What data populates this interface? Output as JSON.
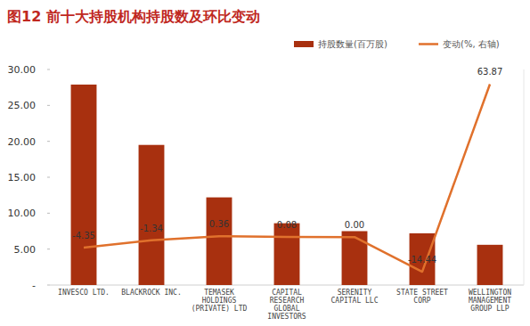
{
  "chart_data": {
    "type": "bar",
    "title": "图12 前十大持股机构持股数及环比变动",
    "categories": [
      "INVESCO LTD.",
      "BLACKROCK INC.",
      "TEMASEK HOLDINGS (PRIVATE) LTD",
      "CAPITAL RESEARCH GLOBAL INVESTORS",
      "SERENITY CAPITAL LLC",
      "STATE STREET CORP",
      "WELLINGTON MANAGEMENT GROUP LLP"
    ],
    "series": [
      {
        "name": "持股数量(百万股)",
        "type": "bar",
        "color": "#a8300f",
        "values": [
          27.9,
          19.5,
          12.2,
          8.6,
          7.5,
          7.2,
          5.6
        ]
      },
      {
        "name": "变动(%, 右轴)",
        "type": "line",
        "axis": "y2",
        "color": "#e0712c",
        "data_labels": true,
        "values": [
          -4.35,
          -1.34,
          0.36,
          0.08,
          0.0,
          -14.44,
          63.87
        ],
        "value_labels": [
          "-4.35",
          "-1.34",
          "0.36",
          "0.08",
          "0.00",
          "-14.44",
          "63.87"
        ]
      }
    ],
    "ylim": [
      0,
      30
    ],
    "yticks": [
      {
        "value": 0,
        "label": "-"
      },
      {
        "value": 5,
        "label": "5.00"
      },
      {
        "value": 10,
        "label": "10.00"
      },
      {
        "value": 15,
        "label": "15.00"
      },
      {
        "value": 20,
        "label": "20.00"
      },
      {
        "value": 25,
        "label": "25.00"
      },
      {
        "value": 30,
        "label": "30.00"
      }
    ],
    "y2lim": [
      -20,
      70
    ],
    "grid": false,
    "legend": "top-right"
  }
}
